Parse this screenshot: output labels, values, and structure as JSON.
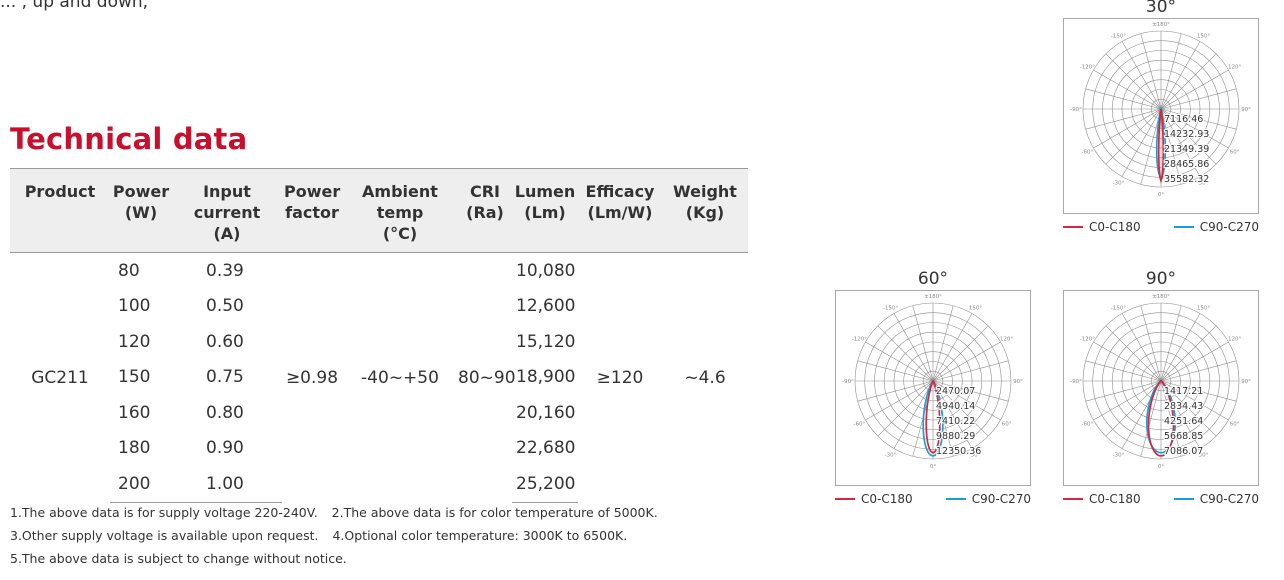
{
  "top_fragment": "... , up and down,",
  "section_title": "Technical data",
  "table": {
    "headers": [
      [
        "Product"
      ],
      [
        "Power",
        "(W)"
      ],
      [
        "Input current",
        "(A)"
      ],
      [
        "Power",
        "factor"
      ],
      [
        "Ambient temp",
        "(°C)"
      ],
      [
        "CRI",
        "(Ra)"
      ],
      [
        "Lumen",
        "(Lm)"
      ],
      [
        "Efficacy",
        "(Lm/W)"
      ],
      [
        "Weight",
        "(Kg)"
      ]
    ],
    "product": "GC211",
    "power_factor": "≥0.98",
    "ambient_temp": "-40~+50",
    "cri": "80~90",
    "efficacy": "≥120",
    "weight": "~4.6",
    "rows": [
      {
        "power": "80",
        "current": "0.39",
        "lumen": "10,080"
      },
      {
        "power": "100",
        "current": "0.50",
        "lumen": "12,600"
      },
      {
        "power": "120",
        "current": "0.60",
        "lumen": "15,120"
      },
      {
        "power": "150",
        "current": "0.75",
        "lumen": "18,900"
      },
      {
        "power": "160",
        "current": "0.80",
        "lumen": "20,160"
      },
      {
        "power": "180",
        "current": "0.90",
        "lumen": "22,680"
      },
      {
        "power": "200",
        "current": "1.00",
        "lumen": "25,200"
      }
    ]
  },
  "notes": [
    [
      "1.The above data is for supply voltage 220-240V.",
      "2.The above data is for color temperature of 5000K."
    ],
    [
      "3.Other supply voltage is available upon request.",
      "4.Optional color temperature: 3000K to 6500K."
    ],
    [
      "5.The above data is subject to change without notice."
    ]
  ],
  "polar_charts": {
    "angle_labels": {
      "top": "±180°",
      "n150": "-150°",
      "p150": "150°",
      "n120": "-120°",
      "p120": "120°",
      "n90": "-90°",
      "p90": "90°",
      "n60": "-60°",
      "p60": "60°",
      "n30": "-30°",
      "p30": "30°",
      "bottom": "0°"
    },
    "colors": {
      "c0_c180": "#d7263d",
      "c90_c270": "#1aa0d8"
    },
    "legend": [
      "C0-C180",
      "C90-C270"
    ],
    "panels": [
      {
        "id": "30",
        "title": "30°",
        "rings": [
          "7116.46",
          "14232.93",
          "21349.39",
          "28465.86",
          "35582.32"
        ],
        "c0_c180": {
          "half_width_deg": 6,
          "peak": 0.92
        },
        "c90_c270": {
          "half_width_deg": 12,
          "peak": 0.87
        }
      },
      {
        "id": "60",
        "title": "60°",
        "rings": [
          "2470.07",
          "4940.14",
          "7410.22",
          "9880.29",
          "12350.36"
        ],
        "c0_c180": {
          "half_width_deg": 18,
          "peak": 0.92
        },
        "c90_c270": {
          "half_width_deg": 25,
          "peak": 0.96
        }
      },
      {
        "id": "90",
        "title": "90°",
        "rings": [
          "1417.21",
          "2834.43",
          "4251.64",
          "5668.85",
          "7086.07"
        ],
        "c0_c180": {
          "half_width_deg": 32,
          "peak": 0.96
        },
        "c90_c270": {
          "half_width_deg": 38,
          "peak": 0.92
        }
      }
    ]
  }
}
